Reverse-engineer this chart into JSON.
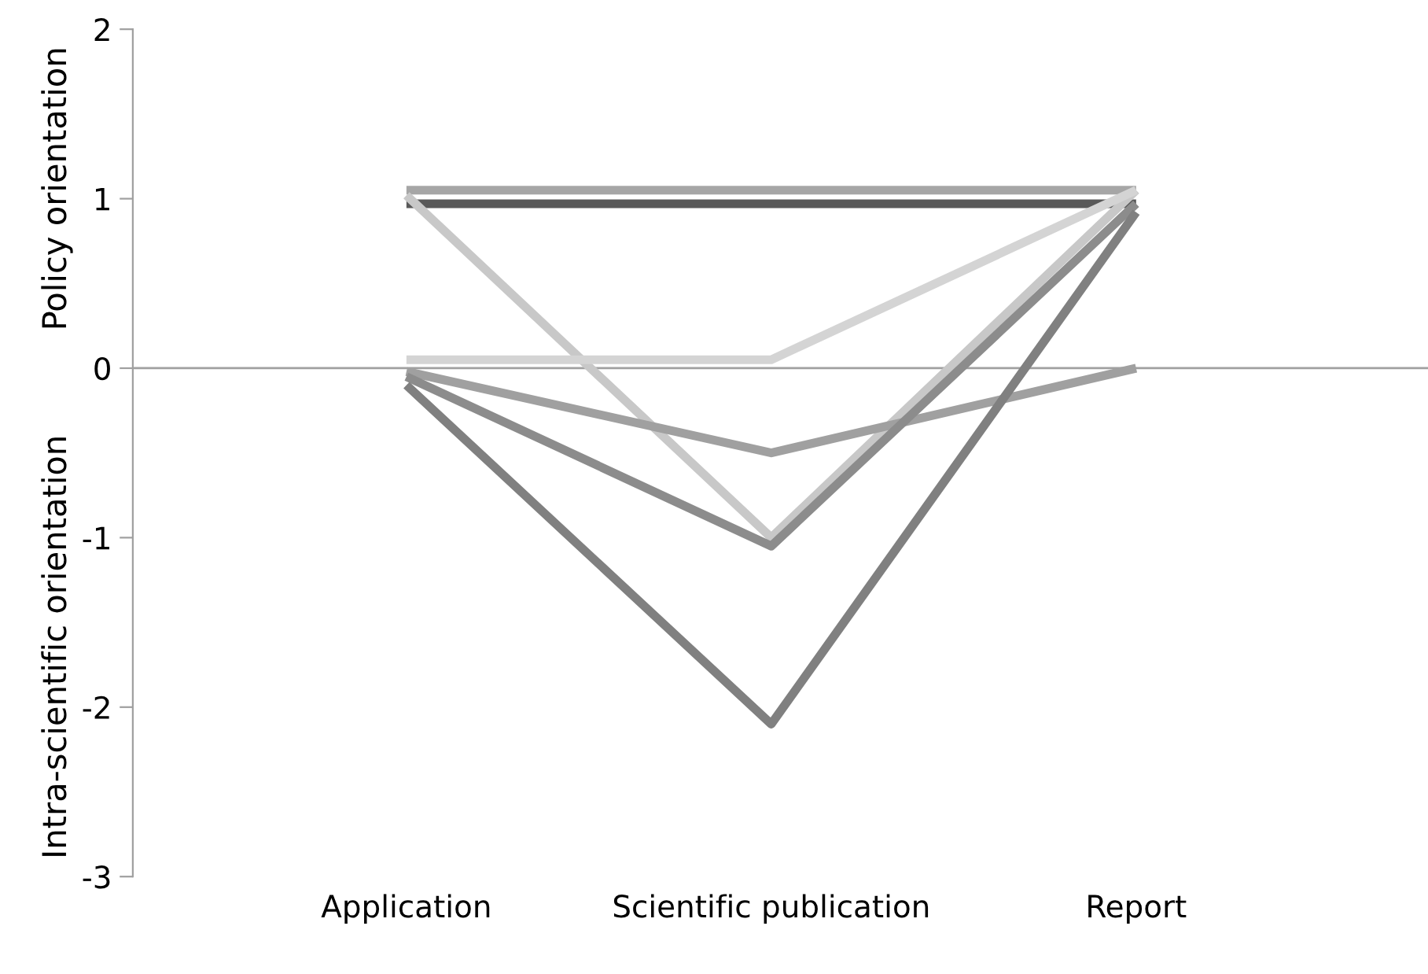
{
  "chart_data": {
    "type": "line",
    "ylabel": "Intra-scientific orientation          Policy orientation",
    "categories": [
      "Application",
      "Scientific publication",
      "Report"
    ],
    "series": [
      {
        "color": "#595959",
        "values": [
          0.97,
          0.97,
          0.97
        ]
      },
      {
        "color": "#a6a6a6",
        "values": [
          1.05,
          1.05,
          1.05
        ]
      },
      {
        "color": "#c8c8c8",
        "values": [
          1.02,
          -1.0,
          1.05
        ]
      },
      {
        "color": "#d4d4d4",
        "values": [
          0.05,
          0.05,
          1.05
        ]
      },
      {
        "color": "#a0a0a0",
        "values": [
          -0.02,
          -0.5,
          0.0
        ]
      },
      {
        "color": "#8c8c8c",
        "values": [
          -0.05,
          -1.05,
          0.97
        ]
      },
      {
        "color": "#808080",
        "values": [
          -0.1,
          -2.1,
          0.92
        ]
      }
    ],
    "ylim": [
      -3,
      2
    ],
    "yticks": [
      -3,
      -2,
      -1,
      0,
      1,
      2
    ],
    "grid": false,
    "legend": false,
    "marker": "none",
    "line_style": "solid",
    "ref_lines": [
      {
        "axis": "y",
        "value": 0,
        "color": "#a0a0a0"
      }
    ]
  }
}
